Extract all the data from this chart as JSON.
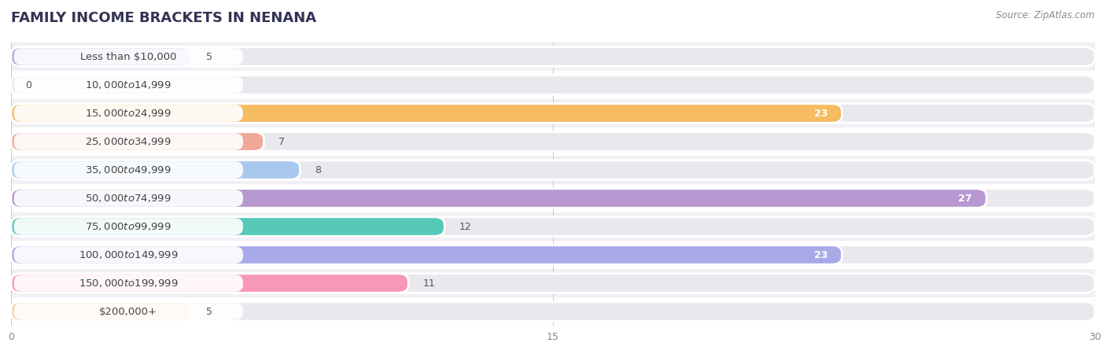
{
  "title": "FAMILY INCOME BRACKETS IN NENANA",
  "source": "Source: ZipAtlas.com",
  "categories": [
    "Less than $10,000",
    "$10,000 to $14,999",
    "$15,000 to $24,999",
    "$25,000 to $34,999",
    "$35,000 to $49,999",
    "$50,000 to $74,999",
    "$75,000 to $99,999",
    "$100,000 to $149,999",
    "$150,000 to $199,999",
    "$200,000+"
  ],
  "values": [
    5,
    0,
    23,
    7,
    8,
    27,
    12,
    23,
    11,
    5
  ],
  "colors": [
    "#aaaade",
    "#f4a0b8",
    "#f5bc60",
    "#f0a898",
    "#a8c8ee",
    "#b898d0",
    "#55c8b8",
    "#a8aae8",
    "#f898b8",
    "#f8d0a0"
  ],
  "xlim": [
    0,
    30
  ],
  "xticks": [
    0,
    15,
    30
  ],
  "background_color": "#ffffff",
  "bar_background_color": "#e8e8ee",
  "row_colors": [
    "#ffffff",
    "#f0f0f5"
  ],
  "title_fontsize": 13,
  "label_fontsize": 9.5,
  "value_fontsize": 9,
  "value_inside_threshold": 15
}
